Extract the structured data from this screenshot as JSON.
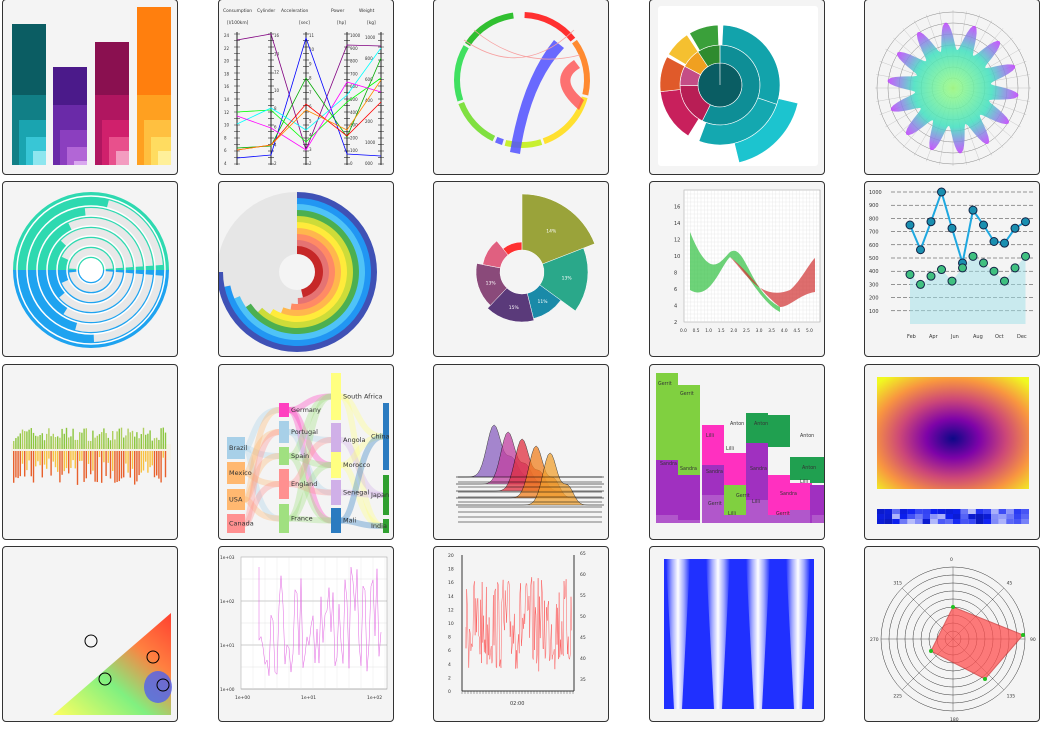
{
  "gallery": {
    "cards": [
      {
        "id": "stacked-bars"
      },
      {
        "id": "parallel-coordinates",
        "headers": [
          "Consumption",
          "Cylinder",
          "Acceleration",
          "Power",
          "Weight"
        ],
        "units": [
          "[l/100km]",
          "[sec]",
          "[hp]",
          "[kg]"
        ],
        "axis_ticks": {
          "consumption": [
            "4",
            "6",
            "8",
            "10",
            "12",
            "14",
            "16",
            "18",
            "20",
            "22",
            "24"
          ],
          "cylinder": [
            "2",
            "4",
            "6",
            "8",
            "10",
            "12",
            "14",
            "16"
          ],
          "acceleration": [
            "2",
            "3",
            "4",
            "5",
            "6",
            "7",
            "8",
            "9",
            "10",
            "11"
          ],
          "power": [
            "0",
            "100",
            "200",
            "300",
            "400",
            "500",
            "600",
            "700",
            "800",
            "900",
            "1000"
          ],
          "weight": [
            "000",
            "1000",
            "200",
            "400",
            "600",
            "800",
            "1000"
          ]
        }
      },
      {
        "id": "chord-diagram"
      },
      {
        "id": "sunburst"
      },
      {
        "id": "polar-area-wave"
      },
      {
        "id": "radial-bar"
      },
      {
        "id": "radial-rings"
      },
      {
        "id": "polar-donut",
        "labels": [
          "14%",
          "13%",
          "11%",
          "15%",
          "13%"
        ]
      },
      {
        "id": "range-area",
        "x_ticks": [
          "0.0",
          "0.5",
          "1.0",
          "1.5",
          "2.0",
          "2.5",
          "3.0",
          "3.5",
          "4.0",
          "4.5",
          "5.0"
        ],
        "y_ticks": [
          "2",
          "4",
          "6",
          "8",
          "10",
          "12",
          "14",
          "16"
        ]
      },
      {
        "id": "line-markers",
        "x_ticks": [
          "Feb",
          "Apr",
          "Jun",
          "Aug",
          "Oct",
          "Dec"
        ],
        "y_ticks": [
          "100",
          "200",
          "300",
          "400",
          "500",
          "600",
          "700",
          "800",
          "900",
          "1000"
        ]
      },
      {
        "id": "dense-bars"
      },
      {
        "id": "sankey",
        "nodes": [
          "Brazil",
          "Mexico",
          "USA",
          "Canada",
          "Germany",
          "Portugal",
          "Spain",
          "England",
          "France",
          "South Africa",
          "Angola",
          "Morocco",
          "Senegal",
          "Mali",
          "China",
          "Japan",
          "India"
        ]
      },
      {
        "id": "ridgeline"
      },
      {
        "id": "marimekko",
        "labels": [
          "Gerrit",
          "Gerrit",
          "Lilli",
          "Sandra",
          "Sandra",
          "Anton",
          "Anton",
          "Lilli",
          "Sandra",
          "Anton",
          "Gerrit",
          "Lilli",
          "Sandra",
          "Gerrit",
          "Lilli",
          "Sandra",
          "Anton",
          "Gerrit",
          "Lilli"
        ]
      },
      {
        "id": "heatmap"
      },
      {
        "id": "contour-map"
      },
      {
        "id": "log-lines",
        "x_ticks": [
          "1e+00",
          "1e+01",
          "1e+02"
        ],
        "y_ticks": [
          "1e+00",
          "1e+01",
          "1e+02",
          "1e+03"
        ]
      },
      {
        "id": "noise-series",
        "x_tick": "02:00",
        "y_left": [
          "0",
          "2",
          "4",
          "6",
          "8",
          "10",
          "12",
          "14",
          "16",
          "18",
          "20"
        ],
        "y_right": [
          "35",
          "40",
          "45",
          "50",
          "55",
          "60",
          "65"
        ]
      },
      {
        "id": "blue-waves"
      },
      {
        "id": "polar-radar",
        "angles": [
          "0",
          "45",
          "90",
          "135",
          "180",
          "225",
          "270",
          "315"
        ]
      }
    ]
  },
  "colors": {
    "card_bg": "#f4f4f4",
    "card_border": "#333333"
  }
}
